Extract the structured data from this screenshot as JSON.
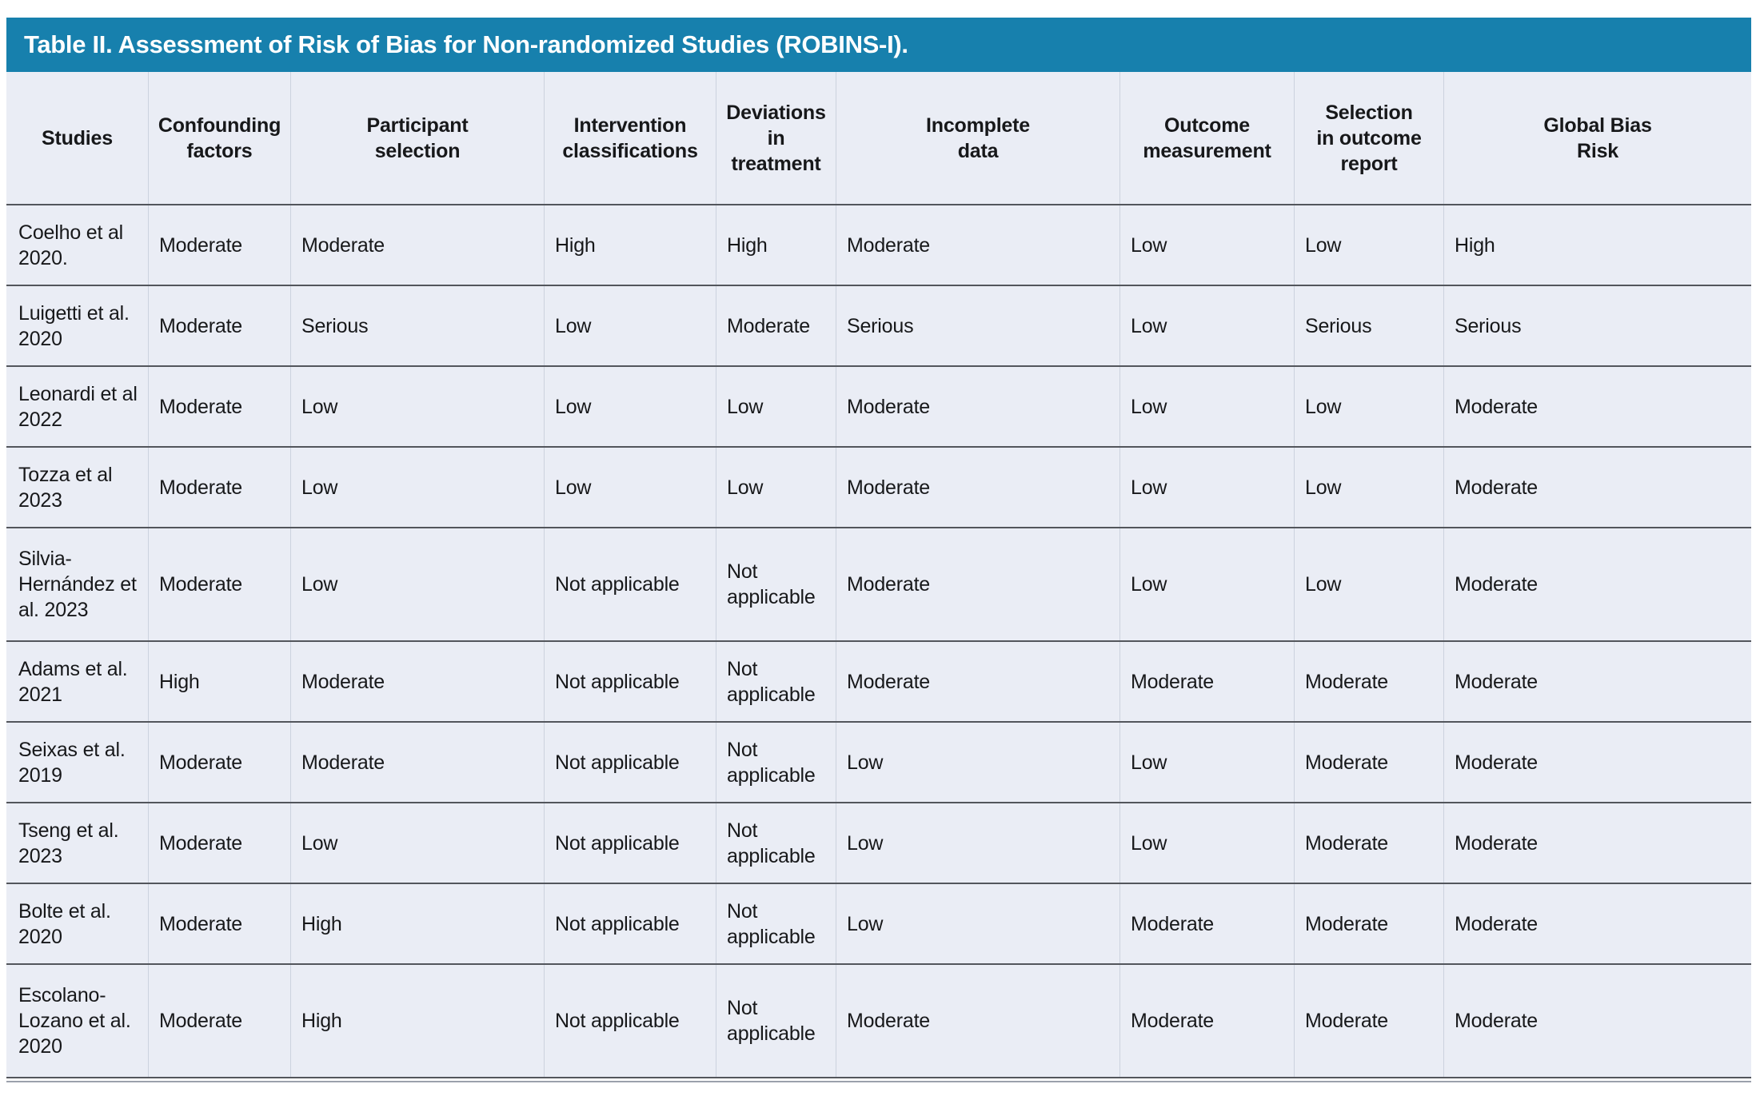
{
  "title": "Table II. Assessment of Risk of Bias for Non-randomized Studies (ROBINS-I).",
  "colors": {
    "title_bar_bg": "#1780ad",
    "title_text": "#ffffff",
    "cell_bg": "#eaedf5",
    "row_border": "#53565c",
    "column_border": "#ccd2de",
    "text": "#17181a"
  },
  "table": {
    "columns": [
      "Studies",
      "Confounding\nfactors",
      "Participant\nselection",
      "Intervention\nclassifications",
      "Deviations\nin\ntreatment",
      "Incomplete\ndata",
      "Outcome\nmeasurement",
      "Selection\nin outcome\nreport",
      "Global Bias\nRisk"
    ],
    "rows": [
      {
        "study": "Coelho et al\n2020.",
        "values": [
          "Moderate",
          "Moderate",
          "High",
          "High",
          "Moderate",
          "Low",
          "Low",
          "High"
        ]
      },
      {
        "study": "Luigetti et al.\n2020",
        "values": [
          "Moderate",
          "Serious",
          "Low",
          "Moderate",
          "Serious",
          "Low",
          "Serious",
          "Serious"
        ]
      },
      {
        "study": "Leonardi et al\n2022",
        "values": [
          "Moderate",
          "Low",
          "Low",
          "Low",
          "Moderate",
          "Low",
          "Low",
          "Moderate"
        ]
      },
      {
        "study": "Tozza et al\n2023",
        "values": [
          "Moderate",
          "Low",
          "Low",
          "Low",
          "Moderate",
          "Low",
          "Low",
          "Moderate"
        ]
      },
      {
        "study": "Silvia-\nHernández et\nal. 2023",
        "values": [
          "Moderate",
          "Low",
          "Not applicable",
          "Not applicable",
          "Moderate",
          "Low",
          "Low",
          "Moderate"
        ]
      },
      {
        "study": "Adams et al.\n2021",
        "values": [
          "High",
          "Moderate",
          "Not applicable",
          "Not applicable",
          "Moderate",
          "Moderate",
          "Moderate",
          "Moderate"
        ]
      },
      {
        "study": "Seixas et al.\n2019",
        "values": [
          "Moderate",
          "Moderate",
          "Not applicable",
          "Not applicable",
          "Low",
          "Low",
          "Moderate",
          "Moderate"
        ]
      },
      {
        "study": "Tseng et al.\n2023",
        "values": [
          "Moderate",
          "Low",
          "Not applicable",
          "Not applicable",
          "Low",
          "Low",
          "Moderate",
          "Moderate"
        ]
      },
      {
        "study": "Bolte et al.\n2020",
        "values": [
          "Moderate",
          "High",
          "Not applicable",
          "Not applicable",
          "Low",
          "Moderate",
          "Moderate",
          "Moderate"
        ]
      },
      {
        "study": "Escolano-\nLozano et al.\n2020",
        "values": [
          "Moderate",
          "High",
          "Not applicable",
          "Not applicable",
          "Moderate",
          "Moderate",
          "Moderate",
          "Moderate"
        ]
      }
    ]
  }
}
